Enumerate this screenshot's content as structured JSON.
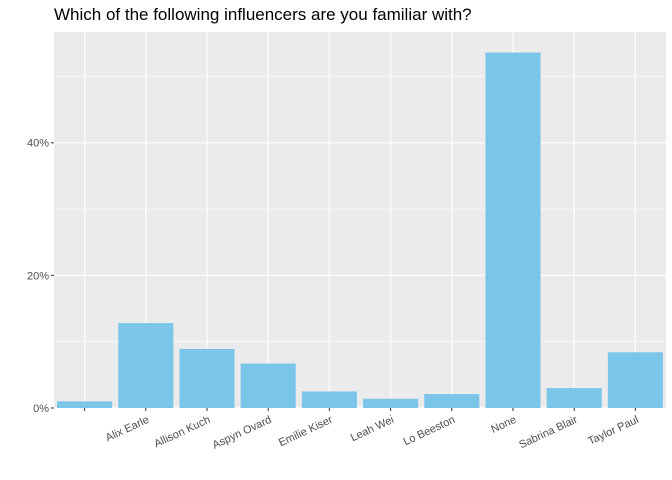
{
  "chart_data": {
    "type": "bar",
    "title": "Which of the following influencers are you familiar with?",
    "xlabel": "",
    "ylabel": "",
    "categories": [
      "",
      "Alix Earle",
      "Allison Kuch",
      "Aspyn Ovard",
      "Emilie Kiser",
      "Leah Wei",
      "Lo Beeston",
      "None",
      "Sabrina Blair",
      "Taylor Paul"
    ],
    "values": [
      1.0,
      12.8,
      8.9,
      6.7,
      2.5,
      1.4,
      2.1,
      53.6,
      3.0,
      8.4
    ],
    "ylim": [
      0,
      56.7
    ],
    "y_ticks": [
      0,
      20,
      40
    ],
    "y_tick_labels": [
      "0%",
      "20%",
      "40%"
    ],
    "grid": true,
    "legend": "none",
    "colors": {
      "bar": "#7AC5E8",
      "panel": "#EBEBEB",
      "grid_major": "#FFFFFF",
      "text": "#4D4D4D"
    }
  }
}
